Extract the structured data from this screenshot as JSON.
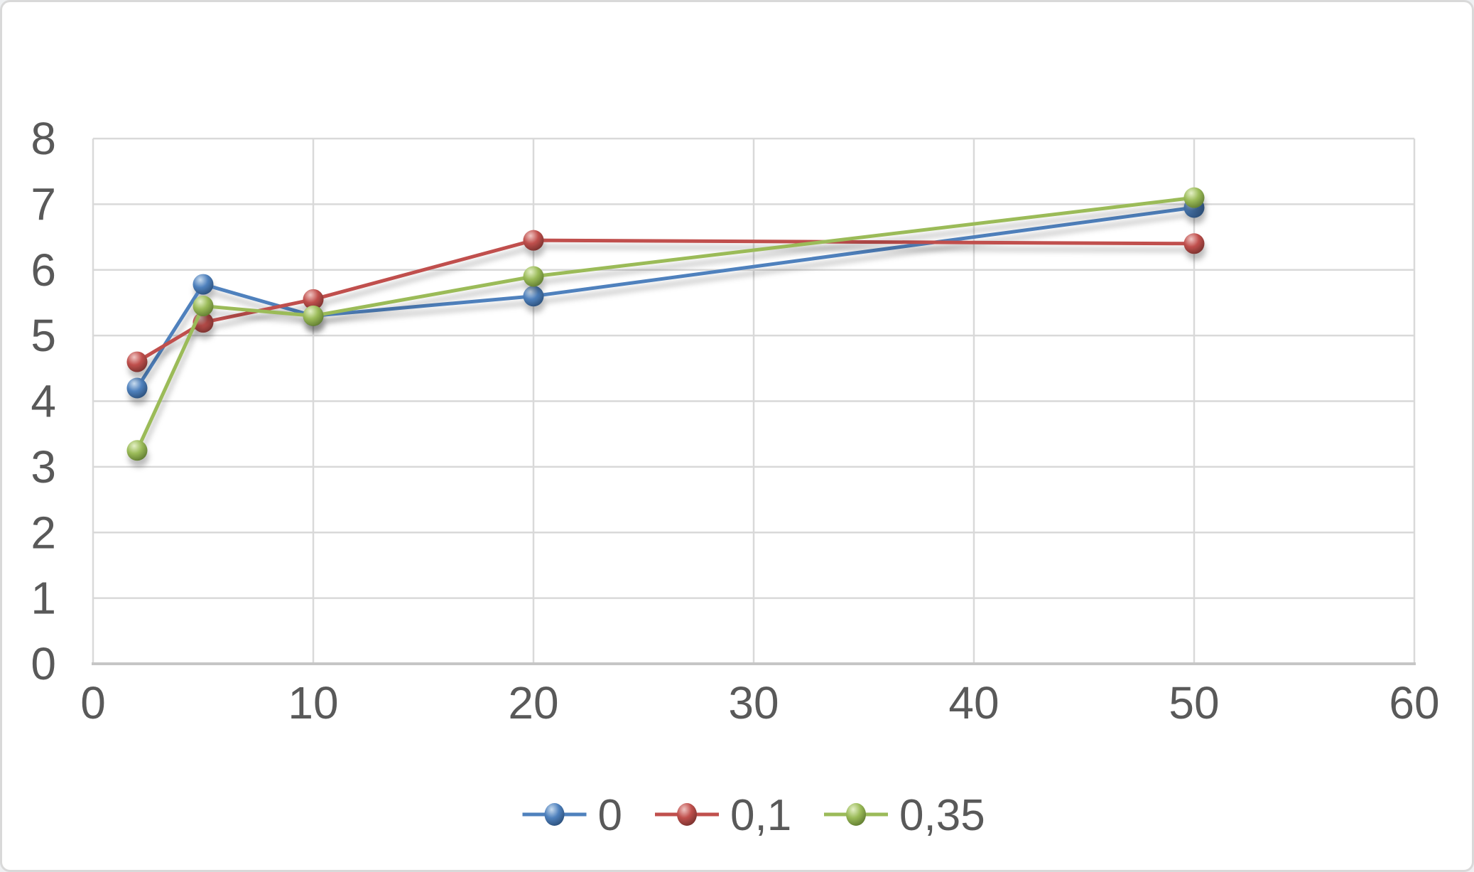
{
  "chart_data": {
    "type": "line",
    "title": "",
    "xlabel": "",
    "ylabel": "",
    "xlim": [
      0,
      60
    ],
    "ylim": [
      0,
      8
    ],
    "x_ticks": [
      0,
      10,
      20,
      30,
      40,
      50,
      60
    ],
    "y_ticks": [
      0,
      1,
      2,
      3,
      4,
      5,
      6,
      7,
      8
    ],
    "grid": true,
    "legend_position": "bottom-center",
    "marker_style": "glossy-sphere",
    "series": [
      {
        "name": "0",
        "color": "#4F81BD",
        "color_light": "#C9DCEF",
        "color_dark": "#2A4E79",
        "x": [
          2,
          5,
          10,
          20,
          50
        ],
        "y": [
          4.2,
          5.78,
          5.3,
          5.6,
          6.95
        ]
      },
      {
        "name": "0,1",
        "color": "#C0504D",
        "color_light": "#F0C5C3",
        "color_dark": "#77302D",
        "x": [
          2,
          5,
          10,
          20,
          50
        ],
        "y": [
          4.6,
          5.2,
          5.55,
          6.45,
          6.4
        ]
      },
      {
        "name": "0,35",
        "color": "#9BBB59",
        "color_light": "#E4F0C6",
        "color_dark": "#5E7A2F",
        "x": [
          2,
          5,
          10,
          20,
          50
        ],
        "y": [
          3.25,
          5.45,
          5.3,
          5.9,
          7.1
        ]
      }
    ]
  },
  "styles": {
    "background": "#FFFFFF",
    "frame_border": "#D9D9D9",
    "gridline": "#D9D9D9",
    "axis_line": "#C6C6C6",
    "tick_label": "#595959",
    "legend_label": "#595959"
  }
}
